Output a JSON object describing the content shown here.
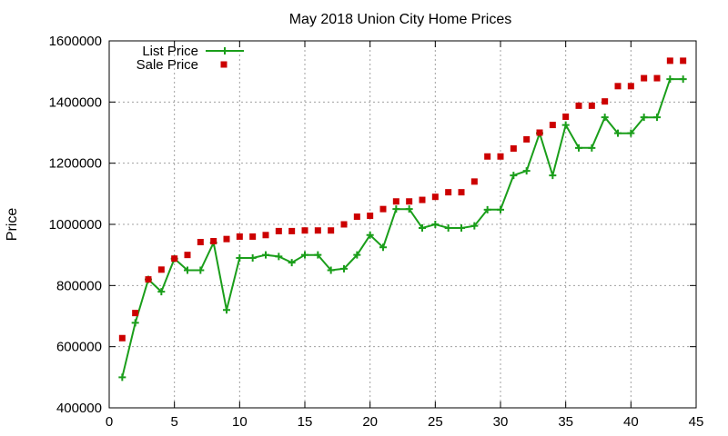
{
  "chart_data": {
    "type": "line",
    "title": "May 2018 Union City Home Prices",
    "xlabel": "",
    "ylabel": "Price",
    "xlim": [
      0,
      45
    ],
    "ylim": [
      400000,
      1600000
    ],
    "xticks": [
      0,
      5,
      10,
      15,
      20,
      25,
      30,
      35,
      40,
      45
    ],
    "yticks": [
      400000,
      600000,
      800000,
      1000000,
      1200000,
      1400000,
      1600000
    ],
    "grid": true,
    "legend_position": "top-left",
    "series": [
      {
        "name": "List Price",
        "style": "line-with-plus-markers",
        "color": "#1a9e1a",
        "x": [
          1,
          2,
          3,
          4,
          5,
          6,
          7,
          8,
          9,
          10,
          11,
          12,
          13,
          14,
          15,
          16,
          17,
          18,
          19,
          20,
          21,
          22,
          23,
          24,
          25,
          26,
          27,
          28,
          29,
          30,
          31,
          32,
          33,
          34,
          35,
          36,
          37,
          38,
          39,
          40,
          41,
          42,
          43,
          44
        ],
        "y": [
          500000,
          678000,
          820000,
          780000,
          888000,
          850000,
          850000,
          940000,
          720000,
          890000,
          890000,
          900000,
          895000,
          875000,
          900000,
          900000,
          850000,
          855000,
          900000,
          965000,
          925000,
          1050000,
          1050000,
          988000,
          1000000,
          988000,
          988000,
          995000,
          1048000,
          1048000,
          1160000,
          1175000,
          1298000,
          1160000,
          1325000,
          1250000,
          1250000,
          1350000,
          1298000,
          1298000,
          1350000,
          1350000,
          1475000,
          1475000
        ]
      },
      {
        "name": "Sale Price",
        "style": "square-markers",
        "color": "#cc0000",
        "x": [
          1,
          2,
          3,
          4,
          5,
          6,
          7,
          8,
          9,
          10,
          11,
          12,
          13,
          14,
          15,
          16,
          17,
          18,
          19,
          20,
          21,
          22,
          23,
          24,
          25,
          26,
          27,
          28,
          29,
          30,
          31,
          32,
          33,
          34,
          35,
          36,
          37,
          38,
          39,
          40,
          41,
          42,
          43,
          44
        ],
        "y": [
          628000,
          710000,
          820000,
          852000,
          888000,
          900000,
          942000,
          945000,
          952000,
          960000,
          960000,
          965000,
          978000,
          978000,
          980000,
          980000,
          980000,
          1000000,
          1025000,
          1028000,
          1050000,
          1075000,
          1075000,
          1080000,
          1090000,
          1105000,
          1105000,
          1140000,
          1222000,
          1222000,
          1248000,
          1278000,
          1300000,
          1325000,
          1352000,
          1388000,
          1388000,
          1402000,
          1452000,
          1452000,
          1478000,
          1478000,
          1535000,
          1535000
        ]
      }
    ]
  }
}
